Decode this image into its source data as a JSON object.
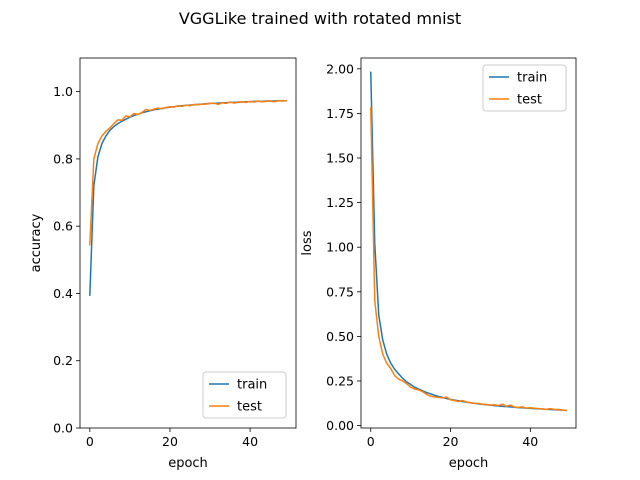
{
  "figure": {
    "title": "VGGLike trained with rotated mnist"
  },
  "colors": {
    "train": "#1f77b4",
    "test": "#ff7f0e"
  },
  "chart_data": [
    {
      "type": "line",
      "xlabel": "epoch",
      "ylabel": "accuracy",
      "xlim": [
        -2.45,
        51.45
      ],
      "ylim": [
        0.0,
        1.1
      ],
      "xticks": [
        0,
        20,
        40
      ],
      "yticks": [
        0.0,
        0.2,
        0.4,
        0.6,
        0.8,
        1.0
      ],
      "ytick_labels": [
        "0.0",
        "0.2",
        "0.4",
        "0.6",
        "0.8",
        "1.0"
      ],
      "legend_position": "lower right",
      "x": [
        0,
        1,
        2,
        3,
        4,
        5,
        6,
        7,
        8,
        9,
        10,
        11,
        12,
        13,
        14,
        15,
        16,
        17,
        18,
        19,
        20,
        21,
        22,
        23,
        24,
        25,
        26,
        27,
        28,
        29,
        30,
        31,
        32,
        33,
        34,
        35,
        36,
        37,
        38,
        39,
        40,
        41,
        42,
        43,
        44,
        45,
        46,
        47,
        48,
        49
      ],
      "series": [
        {
          "name": "train",
          "color": "#1f77b4",
          "values": [
            0.395,
            0.72,
            0.805,
            0.845,
            0.868,
            0.885,
            0.896,
            0.905,
            0.912,
            0.918,
            0.924,
            0.929,
            0.933,
            0.937,
            0.94,
            0.943,
            0.946,
            0.948,
            0.95,
            0.952,
            0.954,
            0.955,
            0.957,
            0.958,
            0.959,
            0.96,
            0.961,
            0.962,
            0.963,
            0.964,
            0.965,
            0.965,
            0.966,
            0.967,
            0.967,
            0.968,
            0.968,
            0.969,
            0.969,
            0.97,
            0.97,
            0.971,
            0.971,
            0.971,
            0.972,
            0.972,
            0.972,
            0.973,
            0.973,
            0.973
          ]
        },
        {
          "name": "test",
          "color": "#ff7f0e",
          "values": [
            0.545,
            0.8,
            0.845,
            0.868,
            0.882,
            0.892,
            0.905,
            0.916,
            0.915,
            0.928,
            0.925,
            0.935,
            0.932,
            0.938,
            0.947,
            0.944,
            0.948,
            0.951,
            0.949,
            0.953,
            0.955,
            0.954,
            0.958,
            0.956,
            0.96,
            0.958,
            0.962,
            0.961,
            0.963,
            0.963,
            0.965,
            0.966,
            0.962,
            0.967,
            0.965,
            0.969,
            0.966,
            0.968,
            0.97,
            0.968,
            0.971,
            0.969,
            0.972,
            0.97,
            0.971,
            0.972,
            0.97,
            0.973,
            0.972,
            0.973
          ]
        }
      ]
    },
    {
      "type": "line",
      "xlabel": "epoch",
      "ylabel": "loss",
      "xlim": [
        -2.45,
        51.45
      ],
      "ylim": [
        -0.0135,
        2.0605
      ],
      "xticks": [
        0,
        20,
        40
      ],
      "yticks": [
        0.0,
        0.25,
        0.5,
        0.75,
        1.0,
        1.25,
        1.5,
        1.75,
        2.0
      ],
      "ytick_labels": [
        "0.00",
        "0.25",
        "0.50",
        "0.75",
        "1.00",
        "1.25",
        "1.50",
        "1.75",
        "2.00"
      ],
      "legend_position": "upper right",
      "x": [
        0,
        1,
        2,
        3,
        4,
        5,
        6,
        7,
        8,
        9,
        10,
        11,
        12,
        13,
        14,
        15,
        16,
        17,
        18,
        19,
        20,
        21,
        22,
        23,
        24,
        25,
        26,
        27,
        28,
        29,
        30,
        31,
        32,
        33,
        34,
        35,
        36,
        37,
        38,
        39,
        40,
        41,
        42,
        43,
        44,
        45,
        46,
        47,
        48,
        49
      ],
      "series": [
        {
          "name": "train",
          "color": "#1f77b4",
          "values": [
            1.98,
            1.02,
            0.62,
            0.48,
            0.4,
            0.35,
            0.315,
            0.29,
            0.265,
            0.245,
            0.23,
            0.215,
            0.205,
            0.195,
            0.185,
            0.178,
            0.17,
            0.163,
            0.158,
            0.152,
            0.147,
            0.143,
            0.139,
            0.135,
            0.131,
            0.128,
            0.125,
            0.122,
            0.119,
            0.117,
            0.115,
            0.112,
            0.11,
            0.108,
            0.106,
            0.105,
            0.103,
            0.101,
            0.1,
            0.098,
            0.097,
            0.095,
            0.094,
            0.093,
            0.091,
            0.09,
            0.089,
            0.088,
            0.087,
            0.085
          ]
        },
        {
          "name": "test",
          "color": "#ff7f0e",
          "values": [
            1.78,
            0.7,
            0.5,
            0.4,
            0.35,
            0.32,
            0.28,
            0.26,
            0.25,
            0.235,
            0.215,
            0.205,
            0.2,
            0.19,
            0.175,
            0.165,
            0.16,
            0.158,
            0.155,
            0.16,
            0.145,
            0.14,
            0.135,
            0.14,
            0.132,
            0.128,
            0.125,
            0.124,
            0.12,
            0.118,
            0.115,
            0.117,
            0.112,
            0.12,
            0.108,
            0.115,
            0.104,
            0.102,
            0.105,
            0.098,
            0.1,
            0.097,
            0.095,
            0.094,
            0.091,
            0.095,
            0.09,
            0.091,
            0.087,
            0.086
          ]
        }
      ]
    }
  ]
}
